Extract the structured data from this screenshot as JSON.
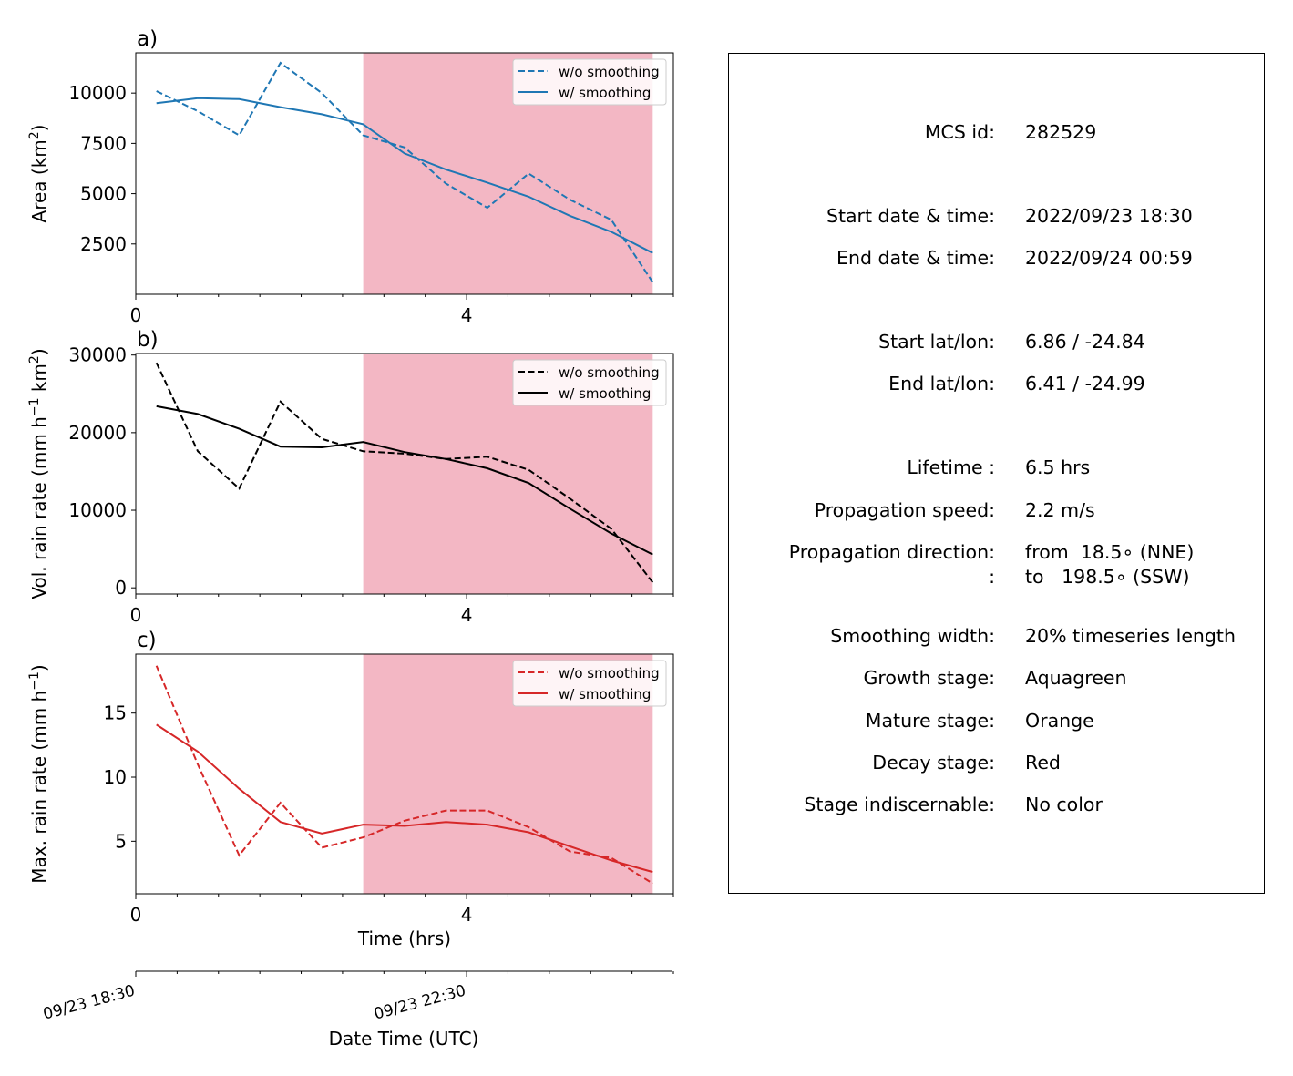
{
  "legend_labels": {
    "dashed": "w/o smoothing",
    "solid": "w/ smoothing"
  },
  "colors": {
    "area": "#1f77b4",
    "volume": "#000000",
    "maxrate": "#d62728",
    "mature_shading": "#f3b7c4"
  },
  "chart_data": [
    {
      "type": "line",
      "panel_label": "a)",
      "ylabel": "Area  (km",
      "ylabel_sup": "2",
      "ylabel_end": ")",
      "x_tick_labels": [
        "0",
        "4"
      ],
      "xlim": [
        0,
        6.5
      ],
      "ylim": [
        0,
        12000
      ],
      "y_ticks": [
        2500,
        5000,
        7500,
        10000
      ],
      "y_tick_labels": [
        "2500",
        "5000",
        "7500",
        "10000"
      ],
      "shaded_x_range": [
        2.75,
        6.25
      ],
      "x": [
        0.25,
        0.75,
        1.25,
        1.75,
        2.25,
        2.75,
        3.25,
        3.75,
        4.25,
        4.75,
        5.25,
        5.75,
        6.25
      ],
      "series": [
        {
          "name": "w/o smoothing",
          "style": "dashed",
          "values": [
            10100,
            9100,
            7900,
            11500,
            10000,
            7900,
            7300,
            5500,
            4300,
            6000,
            4700,
            3700,
            600
          ]
        },
        {
          "name": "w/ smoothing",
          "style": "solid",
          "values": [
            9500,
            9750,
            9700,
            9300,
            8950,
            8450,
            7000,
            6200,
            5550,
            4850,
            3900,
            3100,
            2050
          ]
        }
      ]
    },
    {
      "type": "line",
      "panel_label": "b)",
      "ylabel": "Vol. rain rate (mm h",
      "ylabel_sup": "−1",
      "ylabel_mid": " km",
      "ylabel_sup2": "2",
      "ylabel_end": ")",
      "x_tick_labels": [
        "0",
        "4"
      ],
      "xlim": [
        0,
        6.5
      ],
      "ylim": [
        -800,
        30200
      ],
      "y_ticks": [
        0,
        10000,
        20000,
        30000
      ],
      "y_tick_labels": [
        "0",
        "10000",
        "20000",
        "30000"
      ],
      "shaded_x_range": [
        2.75,
        6.25
      ],
      "x": [
        0.25,
        0.75,
        1.25,
        1.75,
        2.25,
        2.75,
        3.25,
        3.75,
        4.25,
        4.75,
        5.25,
        5.75,
        6.25
      ],
      "series": [
        {
          "name": "w/o smoothing",
          "style": "dashed",
          "values": [
            29000,
            17600,
            12800,
            24000,
            19200,
            17600,
            17300,
            16600,
            16900,
            15200,
            11500,
            7600,
            700
          ]
        },
        {
          "name": "w/ smoothing",
          "style": "solid",
          "values": [
            23400,
            22400,
            20500,
            18200,
            18100,
            18800,
            17500,
            16600,
            15400,
            13500,
            10200,
            7000,
            4300
          ]
        }
      ]
    },
    {
      "type": "line",
      "panel_label": "c)",
      "ylabel": "Max. rain rate  (mm h",
      "ylabel_sup": "−1",
      "ylabel_end": ")",
      "xlabel": "Time (hrs)",
      "x_tick_labels": [
        "0",
        "4"
      ],
      "xlim": [
        0,
        6.5
      ],
      "ylim": [
        0.9,
        19.6
      ],
      "y_ticks": [
        5,
        10,
        15
      ],
      "y_tick_labels": [
        "5",
        "10",
        "15"
      ],
      "shaded_x_range": [
        2.75,
        6.25
      ],
      "x": [
        0.25,
        0.75,
        1.25,
        1.75,
        2.25,
        2.75,
        3.25,
        3.75,
        4.25,
        4.75,
        5.25,
        5.75,
        6.25
      ],
      "series": [
        {
          "name": "w/o smoothing",
          "style": "dashed",
          "values": [
            18.7,
            11.0,
            3.9,
            8.0,
            4.5,
            5.3,
            6.6,
            7.4,
            7.4,
            6.1,
            4.2,
            3.7,
            1.7
          ]
        },
        {
          "name": "w/ smoothing",
          "style": "solid",
          "values": [
            14.1,
            12.0,
            9.1,
            6.5,
            5.6,
            6.3,
            6.2,
            6.5,
            6.3,
            5.7,
            4.6,
            3.5,
            2.6
          ]
        }
      ]
    }
  ],
  "datetime_axis": {
    "xlabel": "Date Time (UTC)",
    "tick_labels": [
      "09/23 18:30",
      "09/23 22:30"
    ]
  },
  "info": {
    "rows": [
      {
        "key": "MCS id:",
        "value": "282529"
      },
      {
        "key": "Start date & time:",
        "value": "2022/09/23 18:30"
      },
      {
        "key": "End date & time:",
        "value": "2022/09/24 00:59"
      },
      {
        "key": "Start lat/lon:",
        "value": "6.86 / -24.84"
      },
      {
        "key": "End lat/lon:",
        "value": "6.41 / -24.99"
      },
      {
        "key": "Lifetime :",
        "value": "6.5 hrs"
      },
      {
        "key": "Propagation speed:",
        "value": "2.2 m/s"
      },
      {
        "key": "Propagation direction:",
        "value": "from  18.5∘ (NNE)"
      },
      {
        "key": ":",
        "value": "to   198.5∘ (SSW)"
      },
      {
        "key": "Smoothing width:",
        "value": "20% timeseries length"
      },
      {
        "key": "Growth stage:",
        "value": "Aquagreen"
      },
      {
        "key": "Mature stage:",
        "value": "Orange"
      },
      {
        "key": "Decay stage:",
        "value": "Red"
      },
      {
        "key": "Stage indiscernable:",
        "value": "No color"
      }
    ]
  }
}
